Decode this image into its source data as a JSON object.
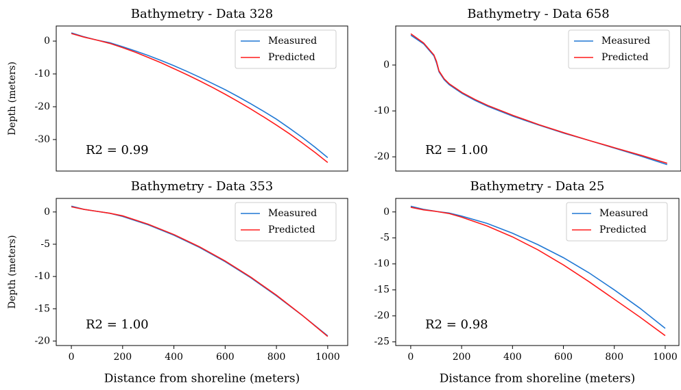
{
  "chart_data": [
    {
      "type": "line",
      "title": "Bathymetry - Data 328",
      "ylabel": "Depth (meters)",
      "annotation": "R2 = 0.99",
      "x": [
        0,
        50,
        100,
        150,
        200,
        250,
        300,
        350,
        400,
        450,
        500,
        550,
        600,
        650,
        700,
        750,
        800,
        850,
        900,
        950,
        1000
      ],
      "series": [
        {
          "name": "Measured",
          "color": "#1f77d4",
          "values": [
            2.5,
            1.3,
            0.3,
            -0.5,
            -1.7,
            -3.0,
            -4.4,
            -5.9,
            -7.5,
            -9.2,
            -11.0,
            -12.9,
            -14.8,
            -16.9,
            -19.1,
            -21.4,
            -23.8,
            -26.5,
            -29.3,
            -32.3,
            -35.5
          ]
        },
        {
          "name": "Predicted",
          "color": "#ff1a1a",
          "values": [
            2.3,
            1.2,
            0.3,
            -0.7,
            -2.0,
            -3.4,
            -5.0,
            -6.6,
            -8.4,
            -10.2,
            -12.1,
            -14.1,
            -16.2,
            -18.4,
            -20.7,
            -23.1,
            -25.6,
            -28.2,
            -31.0,
            -33.9,
            -37.0
          ]
        }
      ],
      "xlim": [
        -59,
        1078
      ],
      "ylim": [
        -39.6,
        4.6
      ],
      "yticks": [
        0,
        -10,
        -20,
        -30
      ],
      "legend": "upper right"
    },
    {
      "type": "line",
      "title": "Bathymetry - Data 658",
      "annotation": "R2 = 1.00",
      "x": [
        0,
        50,
        90,
        100,
        110,
        130,
        150,
        200,
        250,
        300,
        400,
        500,
        600,
        700,
        800,
        900,
        1000
      ],
      "series": [
        {
          "name": "Measured",
          "color": "#1f77d4",
          "values": [
            6.5,
            4.6,
            2.0,
            0.5,
            -1.5,
            -3.2,
            -4.3,
            -6.2,
            -7.7,
            -9.0,
            -11.2,
            -13.1,
            -14.9,
            -16.5,
            -18.2,
            -19.9,
            -21.7
          ]
        },
        {
          "name": "Predicted",
          "color": "#ff1a1a",
          "values": [
            6.8,
            4.8,
            2.2,
            0.8,
            -1.3,
            -3.0,
            -4.1,
            -6.0,
            -7.5,
            -8.8,
            -11.0,
            -13.0,
            -14.8,
            -16.5,
            -18.1,
            -19.7,
            -21.4
          ]
        }
      ],
      "xlim": [
        -59,
        1054
      ],
      "ylim": [
        -23.1,
        8.5
      ],
      "yticks": [
        0,
        -10,
        -20
      ],
      "legend": "upper right"
    },
    {
      "type": "line",
      "title": "Bathymetry - Data 353",
      "ylabel": "Depth (meters)",
      "xlabel": "Distance from shoreline (meters)",
      "annotation": "R2 = 1.00",
      "x": [
        0,
        50,
        100,
        150,
        200,
        300,
        400,
        500,
        600,
        700,
        800,
        900,
        1000
      ],
      "series": [
        {
          "name": "Measured",
          "color": "#1f77d4",
          "values": [
            0.9,
            0.4,
            0.1,
            -0.2,
            -0.7,
            -2.0,
            -3.6,
            -5.5,
            -7.7,
            -10.2,
            -13.0,
            -16.0,
            -19.2
          ]
        },
        {
          "name": "Predicted",
          "color": "#ff1a1a",
          "values": [
            0.8,
            0.4,
            0.1,
            -0.2,
            -0.6,
            -1.9,
            -3.5,
            -5.4,
            -7.6,
            -10.1,
            -12.9,
            -16.0,
            -19.3
          ]
        }
      ],
      "xlim": [
        -59,
        1078
      ],
      "ylim": [
        -20.7,
        2.1
      ],
      "xticks": [
        0,
        200,
        400,
        600,
        800,
        1000
      ],
      "yticks": [
        0,
        -5,
        -10,
        -15,
        -20
      ],
      "legend": "upper right"
    },
    {
      "type": "line",
      "title": "Bathymetry - Data 25",
      "xlabel": "Distance from shoreline (meters)",
      "annotation": "R2 = 0.98",
      "x": [
        0,
        50,
        100,
        150,
        200,
        300,
        400,
        500,
        600,
        700,
        800,
        900,
        1000
      ],
      "series": [
        {
          "name": "Measured",
          "color": "#1f77d4",
          "values": [
            1.1,
            0.5,
            0.1,
            -0.2,
            -0.8,
            -2.2,
            -4.1,
            -6.3,
            -8.8,
            -11.7,
            -15.0,
            -18.5,
            -22.4
          ]
        },
        {
          "name": "Predicted",
          "color": "#ff1a1a",
          "values": [
            0.9,
            0.4,
            0.1,
            -0.3,
            -1.0,
            -2.7,
            -4.8,
            -7.3,
            -10.2,
            -13.4,
            -16.8,
            -20.2,
            -23.8
          ]
        }
      ],
      "xlim": [
        -59,
        1054
      ],
      "ylim": [
        -25.7,
        2.6
      ],
      "xticks": [
        0,
        200,
        400,
        600,
        800,
        1000
      ],
      "yticks": [
        0,
        -5,
        -10,
        -15,
        -20,
        -25
      ],
      "legend": "upper right"
    }
  ]
}
